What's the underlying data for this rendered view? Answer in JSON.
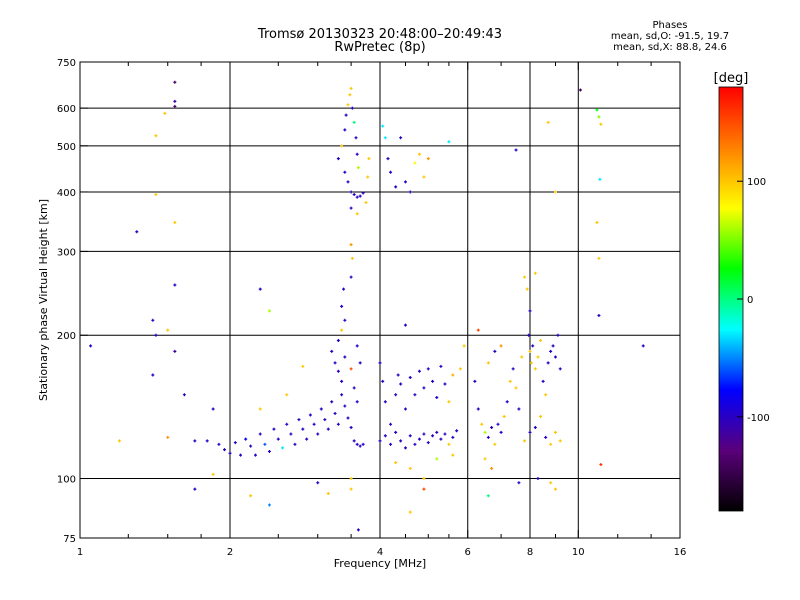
{
  "figure": {
    "title_line1": "Tromsø 20130323 20:48:00–20:49:43",
    "title_line2": "RwPretec (8p)",
    "stats": {
      "heading": "Phases",
      "line_o": "mean, sd,O: -91.5, 19.7",
      "line_x": "mean, sd,X: 88.8, 24.6"
    }
  },
  "chart_data": {
    "type": "scatter",
    "title": "Tromsø 20130323 20:48:00–20:49:43",
    "subtitle": "RwPretec (8p)",
    "xlabel": "Frequency [MHz]",
    "ylabel": "Stationary phase Virtual Height [km]",
    "x_scale": "log",
    "y_scale": "log",
    "xlim": [
      1,
      16
    ],
    "ylim": [
      75,
      750
    ],
    "x_ticks": [
      1,
      2,
      4,
      6,
      8,
      10,
      16
    ],
    "x_tick_labels": [
      "1",
      "2",
      "4",
      "6",
      "8",
      "10",
      "16"
    ],
    "x_minor_ticks": [
      1.25,
      1.5,
      1.75,
      2.5,
      3,
      3.5,
      4.5,
      5,
      5.5,
      7,
      9,
      12,
      14
    ],
    "y_ticks": [
      75,
      100,
      200,
      300,
      400,
      500,
      600,
      750
    ],
    "y_tick_labels": [
      "75",
      "100",
      "200",
      "300",
      "400",
      "500",
      "600",
      "750"
    ],
    "grid": true,
    "colorbar": {
      "label": "[deg]",
      "range": [
        -180,
        180
      ],
      "ticks": [
        100,
        0,
        -100
      ],
      "tick_labels": [
        "100",
        "0",
        "-100"
      ],
      "colors": [
        "#000000",
        "#5a007a",
        "#0000ff",
        "#00ffff",
        "#00ff00",
        "#ffff00",
        "#ff8000",
        "#ff0000"
      ]
    },
    "points": [
      {
        "x": 1.05,
        "y": 190,
        "phase": -100
      },
      {
        "x": 1.2,
        "y": 120,
        "phase": 100
      },
      {
        "x": 1.3,
        "y": 330,
        "phase": -100
      },
      {
        "x": 1.4,
        "y": 215,
        "phase": -100
      },
      {
        "x": 1.4,
        "y": 165,
        "phase": -100
      },
      {
        "x": 1.42,
        "y": 200,
        "phase": -100
      },
      {
        "x": 1.42,
        "y": 525,
        "phase": 100
      },
      {
        "x": 1.42,
        "y": 395,
        "phase": 100
      },
      {
        "x": 1.48,
        "y": 585,
        "phase": 100
      },
      {
        "x": 1.5,
        "y": 205,
        "phase": 100
      },
      {
        "x": 1.5,
        "y": 122,
        "phase": 120
      },
      {
        "x": 1.55,
        "y": 680,
        "phase": -140
      },
      {
        "x": 1.55,
        "y": 620,
        "phase": -110
      },
      {
        "x": 1.55,
        "y": 605,
        "phase": -140
      },
      {
        "x": 1.55,
        "y": 345,
        "phase": 100
      },
      {
        "x": 1.55,
        "y": 255,
        "phase": -100
      },
      {
        "x": 1.55,
        "y": 185,
        "phase": -110
      },
      {
        "x": 1.62,
        "y": 150,
        "phase": -100
      },
      {
        "x": 1.7,
        "y": 120,
        "phase": -100
      },
      {
        "x": 1.7,
        "y": 95,
        "phase": -100
      },
      {
        "x": 1.85,
        "y": 140,
        "phase": -100
      },
      {
        "x": 1.85,
        "y": 102,
        "phase": 100
      },
      {
        "x": 1.8,
        "y": 120,
        "phase": -100
      },
      {
        "x": 1.9,
        "y": 118,
        "phase": -100
      },
      {
        "x": 1.95,
        "y": 115,
        "phase": -100
      },
      {
        "x": 2.0,
        "y": 113,
        "phase": -100
      },
      {
        "x": 2.05,
        "y": 119,
        "phase": -100
      },
      {
        "x": 2.1,
        "y": 112,
        "phase": -100
      },
      {
        "x": 2.15,
        "y": 121,
        "phase": -80
      },
      {
        "x": 2.2,
        "y": 117,
        "phase": -100
      },
      {
        "x": 2.25,
        "y": 112,
        "phase": -100
      },
      {
        "x": 2.3,
        "y": 124,
        "phase": -100
      },
      {
        "x": 2.35,
        "y": 118,
        "phase": -60
      },
      {
        "x": 2.4,
        "y": 114,
        "phase": -100
      },
      {
        "x": 2.45,
        "y": 127,
        "phase": -100
      },
      {
        "x": 2.5,
        "y": 121,
        "phase": -100
      },
      {
        "x": 2.55,
        "y": 116,
        "phase": -30
      },
      {
        "x": 2.6,
        "y": 130,
        "phase": -100
      },
      {
        "x": 2.65,
        "y": 124,
        "phase": -100
      },
      {
        "x": 2.7,
        "y": 118,
        "phase": -100
      },
      {
        "x": 2.75,
        "y": 133,
        "phase": -100
      },
      {
        "x": 2.8,
        "y": 127,
        "phase": -100
      },
      {
        "x": 2.85,
        "y": 121,
        "phase": -100
      },
      {
        "x": 2.9,
        "y": 136,
        "phase": -100
      },
      {
        "x": 2.95,
        "y": 130,
        "phase": -90
      },
      {
        "x": 3.0,
        "y": 124,
        "phase": -100
      },
      {
        "x": 3.05,
        "y": 140,
        "phase": -100
      },
      {
        "x": 3.1,
        "y": 133,
        "phase": -100
      },
      {
        "x": 3.15,
        "y": 127,
        "phase": -100
      },
      {
        "x": 3.2,
        "y": 145,
        "phase": -100
      },
      {
        "x": 3.25,
        "y": 137,
        "phase": -100
      },
      {
        "x": 3.3,
        "y": 130,
        "phase": -100
      },
      {
        "x": 3.35,
        "y": 150,
        "phase": -100
      },
      {
        "x": 3.4,
        "y": 142,
        "phase": -100
      },
      {
        "x": 3.45,
        "y": 134,
        "phase": -100
      },
      {
        "x": 3.5,
        "y": 128,
        "phase": -100
      },
      {
        "x": 2.3,
        "y": 250,
        "phase": -100
      },
      {
        "x": 2.3,
        "y": 140,
        "phase": 100
      },
      {
        "x": 2.4,
        "y": 225,
        "phase": 60
      },
      {
        "x": 2.4,
        "y": 88,
        "phase": -50
      },
      {
        "x": 2.2,
        "y": 92,
        "phase": 100
      },
      {
        "x": 2.6,
        "y": 150,
        "phase": 100
      },
      {
        "x": 2.8,
        "y": 172,
        "phase": 100
      },
      {
        "x": 3.0,
        "y": 98,
        "phase": -100
      },
      {
        "x": 3.15,
        "y": 93,
        "phase": 100
      },
      {
        "x": 3.2,
        "y": 185,
        "phase": -100
      },
      {
        "x": 3.25,
        "y": 175,
        "phase": -100
      },
      {
        "x": 3.3,
        "y": 168,
        "phase": -100
      },
      {
        "x": 3.35,
        "y": 160,
        "phase": -100
      },
      {
        "x": 3.4,
        "y": 180,
        "phase": -100
      },
      {
        "x": 3.3,
        "y": 195,
        "phase": -100
      },
      {
        "x": 3.35,
        "y": 205,
        "phase": 100
      },
      {
        "x": 3.4,
        "y": 215,
        "phase": -100
      },
      {
        "x": 3.35,
        "y": 230,
        "phase": -100
      },
      {
        "x": 3.38,
        "y": 250,
        "phase": -100
      },
      {
        "x": 3.5,
        "y": 265,
        "phase": -100
      },
      {
        "x": 3.52,
        "y": 290,
        "phase": 100
      },
      {
        "x": 3.5,
        "y": 310,
        "phase": 120
      },
      {
        "x": 3.5,
        "y": 170,
        "phase": 150
      },
      {
        "x": 3.55,
        "y": 155,
        "phase": -100
      },
      {
        "x": 3.6,
        "y": 190,
        "phase": -100
      },
      {
        "x": 3.65,
        "y": 175,
        "phase": -100
      },
      {
        "x": 3.6,
        "y": 145,
        "phase": -100
      },
      {
        "x": 3.55,
        "y": 120,
        "phase": -100
      },
      {
        "x": 3.6,
        "y": 118,
        "phase": -100
      },
      {
        "x": 3.65,
        "y": 117,
        "phase": -100
      },
      {
        "x": 3.7,
        "y": 118,
        "phase": -100
      },
      {
        "x": 3.5,
        "y": 100,
        "phase": 100
      },
      {
        "x": 3.5,
        "y": 95,
        "phase": 100
      },
      {
        "x": 3.62,
        "y": 78,
        "phase": -100
      },
      {
        "x": 3.3,
        "y": 470,
        "phase": -100
      },
      {
        "x": 3.35,
        "y": 500,
        "phase": 100
      },
      {
        "x": 3.4,
        "y": 540,
        "phase": -100
      },
      {
        "x": 3.42,
        "y": 580,
        "phase": -100
      },
      {
        "x": 3.45,
        "y": 610,
        "phase": 100
      },
      {
        "x": 3.48,
        "y": 640,
        "phase": 100
      },
      {
        "x": 3.5,
        "y": 660,
        "phase": 100
      },
      {
        "x": 3.52,
        "y": 600,
        "phase": -100
      },
      {
        "x": 3.55,
        "y": 560,
        "phase": 0
      },
      {
        "x": 3.58,
        "y": 520,
        "phase": -100
      },
      {
        "x": 3.6,
        "y": 480,
        "phase": -100
      },
      {
        "x": 3.62,
        "y": 450,
        "phase": 60
      },
      {
        "x": 3.4,
        "y": 440,
        "phase": -100
      },
      {
        "x": 3.45,
        "y": 420,
        "phase": -100
      },
      {
        "x": 3.5,
        "y": 400,
        "phase": -100
      },
      {
        "x": 3.55,
        "y": 395,
        "phase": -100
      },
      {
        "x": 3.6,
        "y": 390,
        "phase": -100
      },
      {
        "x": 3.65,
        "y": 392,
        "phase": -100
      },
      {
        "x": 3.7,
        "y": 398,
        "phase": -100
      },
      {
        "x": 3.5,
        "y": 370,
        "phase": -100
      },
      {
        "x": 3.6,
        "y": 360,
        "phase": 100
      },
      {
        "x": 3.75,
        "y": 380,
        "phase": 100
      },
      {
        "x": 3.8,
        "y": 470,
        "phase": 100
      },
      {
        "x": 3.78,
        "y": 430,
        "phase": 100
      },
      {
        "x": 4.05,
        "y": 550,
        "phase": -30
      },
      {
        "x": 4.1,
        "y": 520,
        "phase": -30
      },
      {
        "x": 4.15,
        "y": 470,
        "phase": -100
      },
      {
        "x": 4.2,
        "y": 440,
        "phase": -100
      },
      {
        "x": 4.3,
        "y": 410,
        "phase": -100
      },
      {
        "x": 4.4,
        "y": 520,
        "phase": -100
      },
      {
        "x": 4.5,
        "y": 420,
        "phase": -100
      },
      {
        "x": 4.6,
        "y": 400,
        "phase": -100
      },
      {
        "x": 4.7,
        "y": 460,
        "phase": 80
      },
      {
        "x": 4.8,
        "y": 480,
        "phase": 100
      },
      {
        "x": 4.9,
        "y": 430,
        "phase": 100
      },
      {
        "x": 5.0,
        "y": 470,
        "phase": 120
      },
      {
        "x": 5.5,
        "y": 510,
        "phase": -30
      },
      {
        "x": 7.5,
        "y": 490,
        "phase": -100
      },
      {
        "x": 4.5,
        "y": 210,
        "phase": -100
      },
      {
        "x": 4.0,
        "y": 175,
        "phase": -100
      },
      {
        "x": 4.05,
        "y": 160,
        "phase": -100
      },
      {
        "x": 4.1,
        "y": 145,
        "phase": -100
      },
      {
        "x": 4.2,
        "y": 130,
        "phase": -100
      },
      {
        "x": 4.3,
        "y": 150,
        "phase": -100
      },
      {
        "x": 4.35,
        "y": 165,
        "phase": -100
      },
      {
        "x": 4.4,
        "y": 158,
        "phase": -100
      },
      {
        "x": 4.5,
        "y": 140,
        "phase": -100
      },
      {
        "x": 4.6,
        "y": 163,
        "phase": -100
      },
      {
        "x": 4.7,
        "y": 150,
        "phase": -100
      },
      {
        "x": 4.8,
        "y": 168,
        "phase": -100
      },
      {
        "x": 4.9,
        "y": 155,
        "phase": -100
      },
      {
        "x": 5.0,
        "y": 170,
        "phase": -100
      },
      {
        "x": 5.1,
        "y": 160,
        "phase": -100
      },
      {
        "x": 5.2,
        "y": 148,
        "phase": -100
      },
      {
        "x": 5.3,
        "y": 172,
        "phase": -100
      },
      {
        "x": 5.4,
        "y": 158,
        "phase": -100
      },
      {
        "x": 5.5,
        "y": 145,
        "phase": 100
      },
      {
        "x": 5.6,
        "y": 165,
        "phase": 110
      },
      {
        "x": 5.8,
        "y": 170,
        "phase": 100
      },
      {
        "x": 5.9,
        "y": 190,
        "phase": 100
      },
      {
        "x": 4.0,
        "y": 120,
        "phase": -100
      },
      {
        "x": 4.1,
        "y": 123,
        "phase": -100
      },
      {
        "x": 4.2,
        "y": 118,
        "phase": -100
      },
      {
        "x": 4.3,
        "y": 125,
        "phase": -100
      },
      {
        "x": 4.4,
        "y": 120,
        "phase": -100
      },
      {
        "x": 4.5,
        "y": 116,
        "phase": -100
      },
      {
        "x": 4.6,
        "y": 123,
        "phase": -100
      },
      {
        "x": 4.7,
        "y": 118,
        "phase": -100
      },
      {
        "x": 4.8,
        "y": 121,
        "phase": -100
      },
      {
        "x": 4.9,
        "y": 124,
        "phase": -100
      },
      {
        "x": 5.0,
        "y": 119,
        "phase": -100
      },
      {
        "x": 5.1,
        "y": 123,
        "phase": -100
      },
      {
        "x": 5.2,
        "y": 125,
        "phase": -100
      },
      {
        "x": 5.3,
        "y": 121,
        "phase": -100
      },
      {
        "x": 5.4,
        "y": 124,
        "phase": -100
      },
      {
        "x": 5.5,
        "y": 118,
        "phase": 100
      },
      {
        "x": 5.6,
        "y": 122,
        "phase": -100
      },
      {
        "x": 5.7,
        "y": 126,
        "phase": -100
      },
      {
        "x": 4.3,
        "y": 108,
        "phase": 100
      },
      {
        "x": 4.6,
        "y": 105,
        "phase": 100
      },
      {
        "x": 4.9,
        "y": 100,
        "phase": 100
      },
      {
        "x": 4.9,
        "y": 95,
        "phase": 150
      },
      {
        "x": 4.6,
        "y": 85,
        "phase": 100
      },
      {
        "x": 5.2,
        "y": 110,
        "phase": 60
      },
      {
        "x": 5.6,
        "y": 112,
        "phase": 100
      },
      {
        "x": 6.3,
        "y": 205,
        "phase": 150
      },
      {
        "x": 6.2,
        "y": 160,
        "phase": -100
      },
      {
        "x": 6.3,
        "y": 140,
        "phase": -100
      },
      {
        "x": 6.4,
        "y": 130,
        "phase": 100
      },
      {
        "x": 6.5,
        "y": 125,
        "phase": 60
      },
      {
        "x": 6.6,
        "y": 122,
        "phase": -100
      },
      {
        "x": 6.7,
        "y": 128,
        "phase": -100
      },
      {
        "x": 6.8,
        "y": 118,
        "phase": 100
      },
      {
        "x": 6.9,
        "y": 130,
        "phase": -100
      },
      {
        "x": 7.0,
        "y": 125,
        "phase": -100
      },
      {
        "x": 7.1,
        "y": 135,
        "phase": 100
      },
      {
        "x": 7.2,
        "y": 145,
        "phase": -100
      },
      {
        "x": 7.3,
        "y": 160,
        "phase": 100
      },
      {
        "x": 7.4,
        "y": 170,
        "phase": -100
      },
      {
        "x": 7.5,
        "y": 155,
        "phase": 100
      },
      {
        "x": 7.6,
        "y": 140,
        "phase": -100
      },
      {
        "x": 7.7,
        "y": 180,
        "phase": 100
      },
      {
        "x": 6.6,
        "y": 175,
        "phase": 100
      },
      {
        "x": 6.8,
        "y": 185,
        "phase": -100
      },
      {
        "x": 7.0,
        "y": 190,
        "phase": 120
      },
      {
        "x": 6.5,
        "y": 110,
        "phase": 100
      },
      {
        "x": 6.7,
        "y": 105,
        "phase": 120
      },
      {
        "x": 6.6,
        "y": 92,
        "phase": 0
      },
      {
        "x": 7.6,
        "y": 98,
        "phase": -100
      },
      {
        "x": 7.8,
        "y": 265,
        "phase": 100
      },
      {
        "x": 7.9,
        "y": 250,
        "phase": 100
      },
      {
        "x": 8.0,
        "y": 225,
        "phase": -100
      },
      {
        "x": 7.95,
        "y": 200,
        "phase": -100
      },
      {
        "x": 8.0,
        "y": 185,
        "phase": 100
      },
      {
        "x": 8.05,
        "y": 175,
        "phase": 100
      },
      {
        "x": 8.1,
        "y": 190,
        "phase": -100
      },
      {
        "x": 8.2,
        "y": 170,
        "phase": 100
      },
      {
        "x": 8.3,
        "y": 180,
        "phase": 100
      },
      {
        "x": 8.4,
        "y": 195,
        "phase": 100
      },
      {
        "x": 8.5,
        "y": 160,
        "phase": -100
      },
      {
        "x": 8.6,
        "y": 150,
        "phase": 100
      },
      {
        "x": 8.7,
        "y": 175,
        "phase": -100
      },
      {
        "x": 8.8,
        "y": 185,
        "phase": -100
      },
      {
        "x": 8.9,
        "y": 190,
        "phase": -100
      },
      {
        "x": 9.0,
        "y": 180,
        "phase": -100
      },
      {
        "x": 9.1,
        "y": 200,
        "phase": -100
      },
      {
        "x": 9.2,
        "y": 170,
        "phase": -100
      },
      {
        "x": 7.8,
        "y": 120,
        "phase": 100
      },
      {
        "x": 8.0,
        "y": 125,
        "phase": -100
      },
      {
        "x": 8.2,
        "y": 128,
        "phase": -100
      },
      {
        "x": 8.4,
        "y": 135,
        "phase": 100
      },
      {
        "x": 8.6,
        "y": 122,
        "phase": -100
      },
      {
        "x": 8.8,
        "y": 118,
        "phase": 100
      },
      {
        "x": 9.0,
        "y": 125,
        "phase": 100
      },
      {
        "x": 9.2,
        "y": 120,
        "phase": 100
      },
      {
        "x": 8.2,
        "y": 270,
        "phase": 100
      },
      {
        "x": 8.3,
        "y": 100,
        "phase": -100
      },
      {
        "x": 8.8,
        "y": 98,
        "phase": 100
      },
      {
        "x": 9.0,
        "y": 95,
        "phase": 100
      },
      {
        "x": 8.7,
        "y": 560,
        "phase": 100
      },
      {
        "x": 9.0,
        "y": 400,
        "phase": 100
      },
      {
        "x": 10.1,
        "y": 655,
        "phase": -140
      },
      {
        "x": 10.9,
        "y": 595,
        "phase": 20
      },
      {
        "x": 11.0,
        "y": 575,
        "phase": 50
      },
      {
        "x": 11.1,
        "y": 555,
        "phase": 100
      },
      {
        "x": 11.05,
        "y": 425,
        "phase": -30
      },
      {
        "x": 10.9,
        "y": 345,
        "phase": 100
      },
      {
        "x": 11.0,
        "y": 290,
        "phase": 100
      },
      {
        "x": 11.0,
        "y": 220,
        "phase": -100
      },
      {
        "x": 11.1,
        "y": 107,
        "phase": 160
      },
      {
        "x": 13.5,
        "y": 190,
        "phase": -100
      }
    ]
  }
}
